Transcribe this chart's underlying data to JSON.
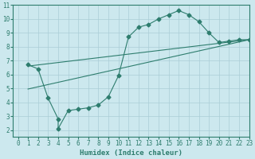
{
  "line1_x": [
    1,
    2,
    3,
    4,
    4,
    5,
    6,
    7,
    8,
    9,
    10,
    11,
    12,
    13,
    14,
    15,
    16,
    17,
    18,
    19,
    20,
    21,
    22,
    23
  ],
  "line1_y": [
    6.7,
    6.4,
    4.3,
    2.8,
    2.1,
    3.4,
    3.5,
    3.6,
    3.8,
    4.4,
    5.9,
    8.7,
    9.4,
    9.6,
    10.0,
    10.3,
    10.6,
    10.3,
    9.8,
    9.0,
    8.3,
    8.4,
    8.5,
    8.5
  ],
  "line2_x": [
    1,
    23
  ],
  "line2_y": [
    6.6,
    8.5
  ],
  "line3_x": [
    1,
    23
  ],
  "line3_y": [
    4.95,
    8.5
  ],
  "color": "#2e7d6e",
  "bg_color": "#cce8ee",
  "grid_color": "#aacdd6",
  "xlabel": "Humidex (Indice chaleur)",
  "xlim": [
    -0.5,
    23
  ],
  "ylim": [
    1.5,
    11
  ],
  "xticks": [
    0,
    1,
    2,
    3,
    4,
    5,
    6,
    7,
    8,
    9,
    10,
    11,
    12,
    13,
    14,
    15,
    16,
    17,
    18,
    19,
    20,
    21,
    22,
    23
  ],
  "yticks": [
    2,
    3,
    4,
    5,
    6,
    7,
    8,
    9,
    10,
    11
  ],
  "label_fontsize": 6.5,
  "tick_fontsize": 5.5
}
